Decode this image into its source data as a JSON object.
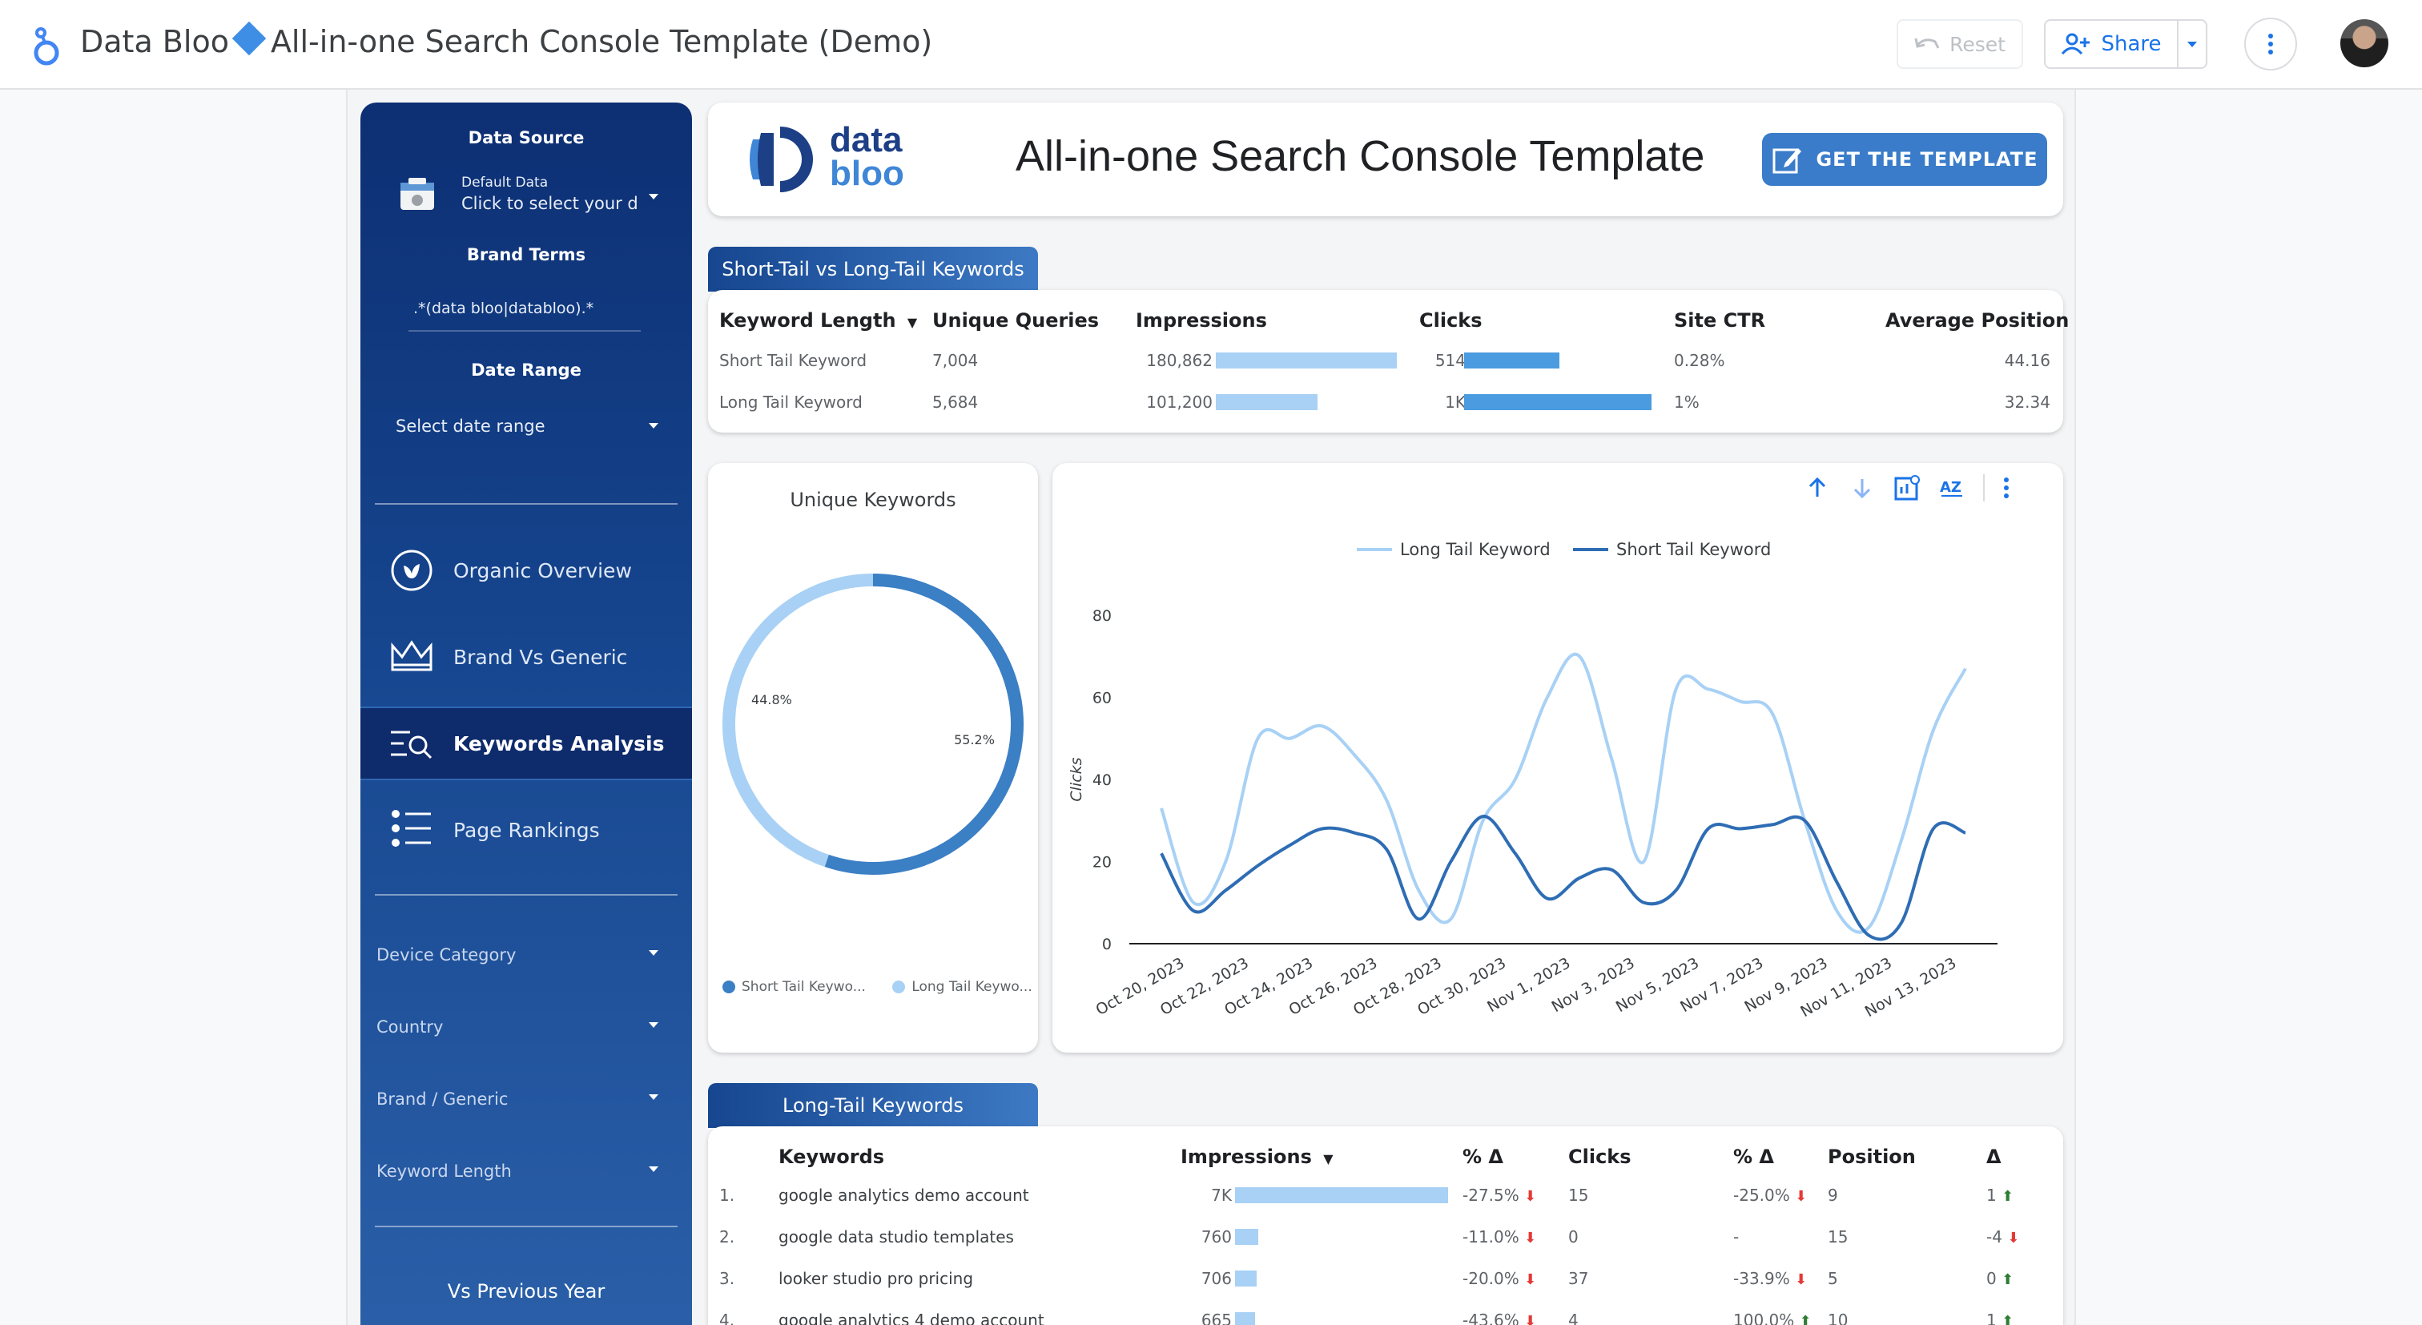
{
  "app": {
    "title_left": "Data Bloo",
    "title_right": "All-in-one Search Console Template (Demo)",
    "reset_label": "Reset",
    "share_label": "Share"
  },
  "sidebar": {
    "data_source_label": "Data Source",
    "data_source_small": "Default Data",
    "data_source_value": "Click to select your d",
    "brand_terms_label": "Brand Terms",
    "brand_terms_value": ".*(data bloo|databloo).*",
    "date_range_label": "Date Range",
    "date_range_value": "Select date range",
    "nav": [
      {
        "label": "Organic Overview",
        "icon": "leaf-icon",
        "active": false
      },
      {
        "label": "Brand Vs Generic",
        "icon": "crown-icon",
        "active": false
      },
      {
        "label": "Keywords Analysis",
        "icon": "search-list-icon",
        "active": true
      },
      {
        "label": "Page Rankings",
        "icon": "list-icon",
        "active": false
      }
    ],
    "filters": [
      "Device Category",
      "Country",
      "Brand / Generic",
      "Keyword Length"
    ],
    "comparison_label": "Vs Previous Year"
  },
  "header": {
    "logo_top": "data",
    "logo_bottom": "bloo",
    "title": "All-in-one Search Console Template",
    "button": "GET THE TEMPLATE"
  },
  "table1": {
    "tab": "Short-Tail vs Long-Tail Keywords",
    "columns": [
      "Keyword Length",
      "Unique Queries",
      "Impressions",
      "Clicks",
      "Site CTR",
      "Average Position"
    ],
    "rows": [
      {
        "length": "Short Tail Keyword",
        "queries": "7,004",
        "impressions": "180,862",
        "impressions_frac": 1.0,
        "clicks": "514",
        "clicks_frac": 0.51,
        "ctr": "0.28%",
        "position": "44.16"
      },
      {
        "length": "Long Tail Keyword",
        "queries": "5,684",
        "impressions": "101,200",
        "impressions_frac": 0.56,
        "clicks": "1K",
        "clicks_frac": 1.0,
        "ctr": "1%",
        "position": "32.34"
      }
    ]
  },
  "donut": {
    "title": "Unique Keywords",
    "legend": [
      "Short Tail Keywo...",
      "Long Tail Keywo..."
    ],
    "colors": {
      "short": "#3b7fc4",
      "long": "#a8d1f5"
    }
  },
  "chart_data": [
    {
      "type": "pie",
      "title": "Unique Keywords",
      "labels": [
        "Short Tail Keyword",
        "Long Tail Keyword"
      ],
      "values": [
        55.2,
        44.8
      ],
      "value_labels": [
        "55.2%",
        "44.8%"
      ]
    },
    {
      "type": "line",
      "ylabel": "Clicks",
      "ylim": [
        0,
        80
      ],
      "yticks": [
        "0",
        "20",
        "40",
        "60",
        "80"
      ],
      "legend_position": "top",
      "xtick_labels": [
        "Oct 20, 2023",
        "Oct 22, 2023",
        "Oct 24, 2023",
        "Oct 26, 2023",
        "Oct 28, 2023",
        "Oct 30, 2023",
        "Nov 1, 2023",
        "Nov 3, 2023",
        "Nov 5, 2023",
        "Nov 7, 2023",
        "Nov 9, 2023",
        "Nov 11, 2023",
        "Nov 13, 2023"
      ],
      "x": [
        "2023-10-20",
        "2023-10-21",
        "2023-10-22",
        "2023-10-23",
        "2023-10-24",
        "2023-10-25",
        "2023-10-26",
        "2023-10-27",
        "2023-10-28",
        "2023-10-29",
        "2023-10-30",
        "2023-10-31",
        "2023-11-01",
        "2023-11-02",
        "2023-11-03",
        "2023-11-04",
        "2023-11-05",
        "2023-11-06",
        "2023-11-07",
        "2023-11-08",
        "2023-11-09",
        "2023-11-10",
        "2023-11-11",
        "2023-11-12",
        "2023-11-13",
        "2023-11-14"
      ],
      "series": [
        {
          "name": "Long Tail Keyword",
          "color": "#a8d1f5",
          "values": [
            33,
            10,
            20,
            50,
            50,
            53,
            46,
            35,
            13,
            6,
            30,
            40,
            60,
            70,
            45,
            20,
            62,
            62,
            59,
            56,
            30,
            8,
            4,
            25,
            52,
            67
          ]
        },
        {
          "name": "Short Tail Keyword",
          "color": "#2e6db4",
          "values": [
            22,
            8,
            13,
            19,
            24,
            28,
            27,
            23,
            6,
            20,
            31,
            22,
            11,
            16,
            18,
            10,
            13,
            28,
            28,
            29,
            30,
            15,
            2,
            5,
            28,
            27
          ]
        }
      ]
    }
  ],
  "table2": {
    "tab": "Long-Tail Keywords",
    "columns": [
      "Keywords",
      "Impressions",
      "% Δ",
      "Clicks",
      "% Δ",
      "Position",
      "Δ"
    ],
    "rows": [
      {
        "n": "1.",
        "keyword": "google analytics demo account",
        "impressions": "7K",
        "imp_frac": 1.0,
        "imp_delta": "-27.5%",
        "imp_dir": "down",
        "clicks": "15",
        "clicks_delta": "-25.0%",
        "clicks_dir": "down",
        "position": "9",
        "pos_delta": "1",
        "pos_dir": "up"
      },
      {
        "n": "2.",
        "keyword": "google data studio templates",
        "impressions": "760",
        "imp_frac": 0.11,
        "imp_delta": "-11.0%",
        "imp_dir": "down",
        "clicks": "0",
        "clicks_delta": "-",
        "clicks_dir": "",
        "position": "15",
        "pos_delta": "-4",
        "pos_dir": "down"
      },
      {
        "n": "3.",
        "keyword": "looker studio pro pricing",
        "impressions": "706",
        "imp_frac": 0.1,
        "imp_delta": "-20.0%",
        "imp_dir": "down",
        "clicks": "37",
        "clicks_delta": "-33.9%",
        "clicks_dir": "down",
        "position": "5",
        "pos_delta": "0",
        "pos_dir": "up"
      },
      {
        "n": "4.",
        "keyword": "google analytics 4 demo account",
        "impressions": "665",
        "imp_frac": 0.095,
        "imp_delta": "-43.6%",
        "imp_dir": "down",
        "clicks": "4",
        "clicks_delta": "100.0%",
        "clicks_dir": "up",
        "position": "10",
        "pos_delta": "1",
        "pos_dir": "up"
      }
    ]
  }
}
